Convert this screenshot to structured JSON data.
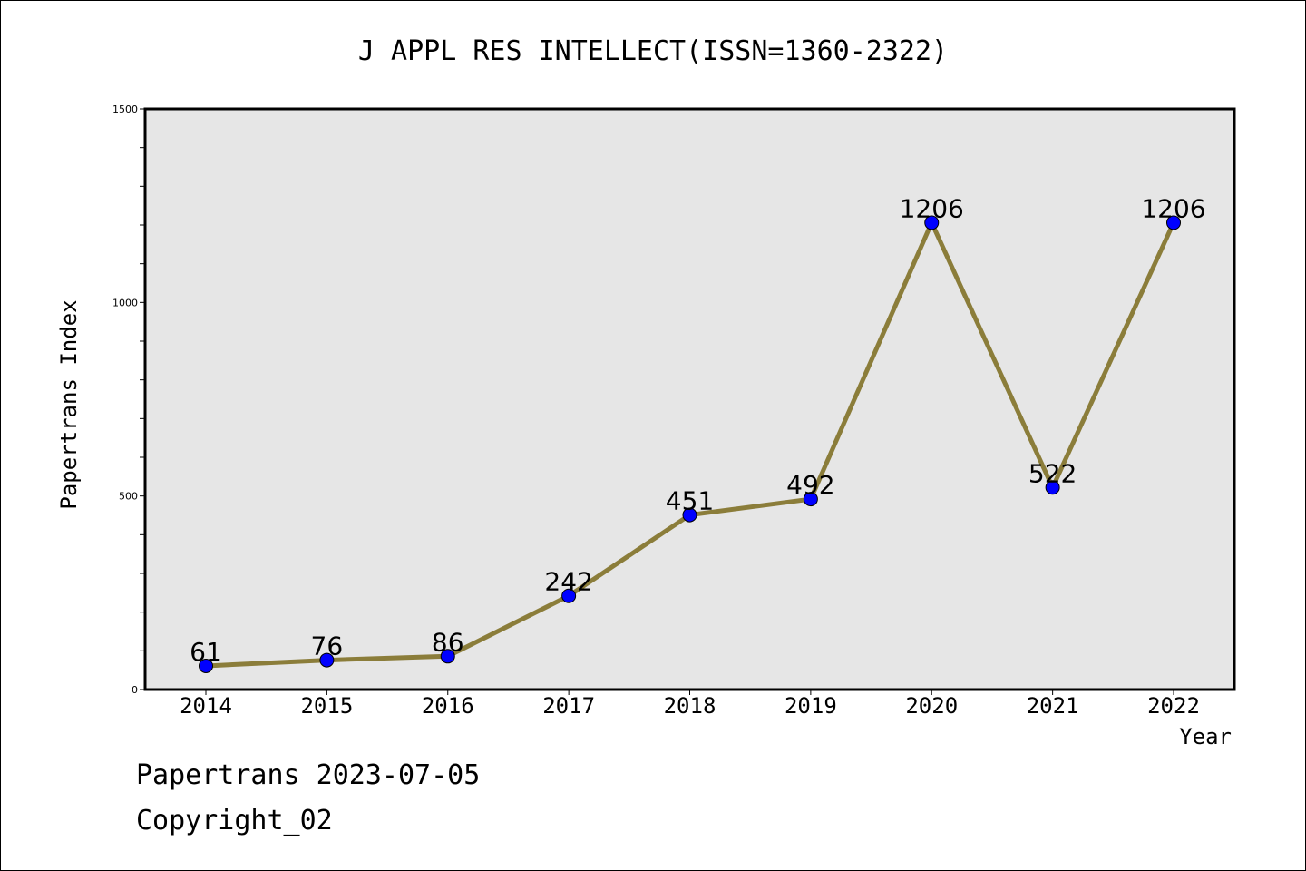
{
  "chart_data": {
    "type": "line",
    "title": "J APPL RES INTELLECT(ISSN=1360-2322)",
    "xlabel": "Year",
    "ylabel": "Papertrans Index",
    "categories": [
      "2014",
      "2015",
      "2016",
      "2017",
      "2018",
      "2019",
      "2020",
      "2021",
      "2022"
    ],
    "series": [
      {
        "values": [
          61,
          76,
          86,
          242,
          451,
          492,
          1206,
          522,
          1206
        ]
      }
    ],
    "data_labels": [
      "61",
      "76",
      "86",
      "242",
      "451",
      "492",
      "1206",
      "522",
      "1206"
    ],
    "ylim": [
      0,
      1500
    ],
    "yticks": [
      0,
      500,
      1000,
      1500
    ],
    "ytick_labels": [
      "0",
      "500",
      "1000",
      "1500"
    ],
    "grid": false,
    "line_color": "#8b7d3a",
    "marker_color": "#0000ff",
    "plot_background": "#e6e6e6"
  },
  "footer": {
    "line1": "Papertrans 2023-07-05",
    "line2": "Copyright_02"
  }
}
